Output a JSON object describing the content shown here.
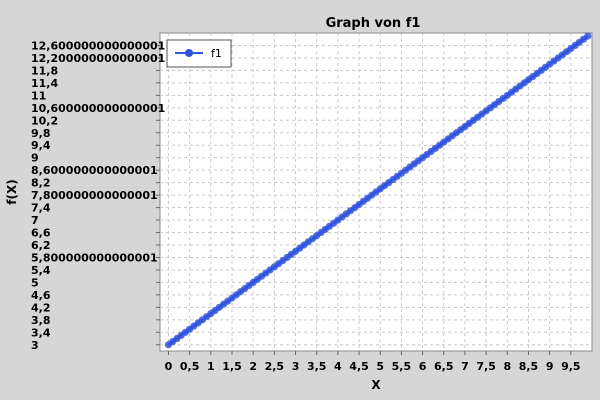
{
  "chart_data": {
    "type": "line",
    "title": "Graph von f1",
    "xlabel": "X",
    "ylabel": "f(X)",
    "xlim": [
      -0.2,
      10.0
    ],
    "ylim": [
      2.8,
      13.0
    ],
    "grid": true,
    "legend_position": "top-left",
    "x_ticks": [
      0,
      0.5,
      1,
      1.5,
      2,
      2.5,
      3,
      3.5,
      4,
      4.5,
      5,
      5.5,
      6,
      6.5,
      7,
      7.5,
      8,
      8.5,
      9,
      9.5
    ],
    "x_tick_labels": [
      "0",
      "0,5",
      "1",
      "1,5",
      "2",
      "2,5",
      "3",
      "3,5",
      "4",
      "4,5",
      "5",
      "5,5",
      "6",
      "6,5",
      "7",
      "7,5",
      "8",
      "8,5",
      "9",
      "9,5"
    ],
    "y_ticks": [
      3,
      3.4,
      3.8,
      4.2,
      4.6,
      5,
      5.4,
      5.8,
      6.2,
      6.6,
      7,
      7.4,
      7.8,
      8.2,
      8.6,
      9,
      9.4,
      9.8,
      10.2,
      10.6,
      11,
      11.4,
      11.8,
      12.2,
      12.6
    ],
    "y_tick_labels": [
      "3",
      "3,4",
      "3,8",
      "4,2",
      "4,6",
      "5",
      "5,4",
      "5,800000000000001",
      "6,2",
      "6,6",
      "7",
      "7,4",
      "7,800000000000001",
      "8,2",
      "8,600000000000001",
      "9",
      "9,4",
      "9,8",
      "10,2",
      "10,600000000000001",
      "11",
      "11,4",
      "11,8",
      "12,200000000000001",
      "12,600000000000001"
    ],
    "series": [
      {
        "name": "f1",
        "color": "#3355dd",
        "x_start": 0,
        "x_end": 9.9,
        "x_step": 0.1,
        "y_start": 3,
        "y_end": 12.9
      }
    ]
  }
}
